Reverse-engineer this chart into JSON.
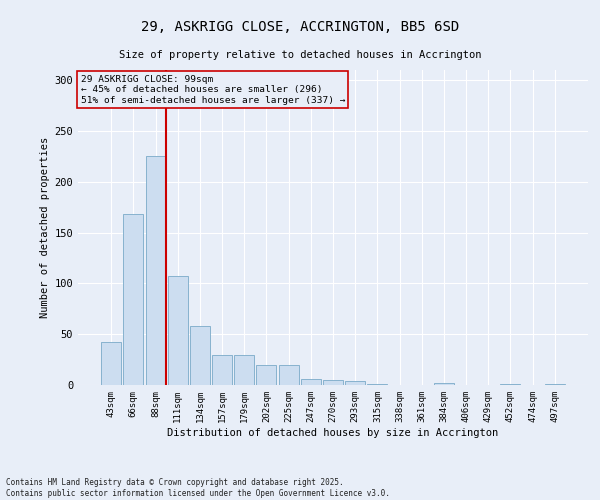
{
  "title_line1": "29, ASKRIGG CLOSE, ACCRINGTON, BB5 6SD",
  "title_line2": "Size of property relative to detached houses in Accrington",
  "xlabel": "Distribution of detached houses by size in Accrington",
  "ylabel": "Number of detached properties",
  "categories": [
    "43sqm",
    "66sqm",
    "88sqm",
    "111sqm",
    "134sqm",
    "157sqm",
    "179sqm",
    "202sqm",
    "225sqm",
    "247sqm",
    "270sqm",
    "293sqm",
    "315sqm",
    "338sqm",
    "361sqm",
    "384sqm",
    "406sqm",
    "429sqm",
    "452sqm",
    "474sqm",
    "497sqm"
  ],
  "values": [
    42,
    168,
    225,
    107,
    58,
    30,
    30,
    20,
    20,
    6,
    5,
    4,
    1,
    0,
    0,
    2,
    0,
    0,
    1,
    0,
    1
  ],
  "bar_color": "#ccddf0",
  "bar_edge_color": "#7aaac8",
  "background_color": "#e8eef8",
  "grid_color": "#ffffff",
  "vline_x_index": 2,
  "vline_color": "#cc0000",
  "annotation_text": "29 ASKRIGG CLOSE: 99sqm\n← 45% of detached houses are smaller (296)\n51% of semi-detached houses are larger (337) →",
  "annotation_box_color": "#cc0000",
  "ylim": [
    0,
    310
  ],
  "yticks": [
    0,
    50,
    100,
    150,
    200,
    250,
    300
  ],
  "footer_line1": "Contains HM Land Registry data © Crown copyright and database right 2025.",
  "footer_line2": "Contains public sector information licensed under the Open Government Licence v3.0."
}
